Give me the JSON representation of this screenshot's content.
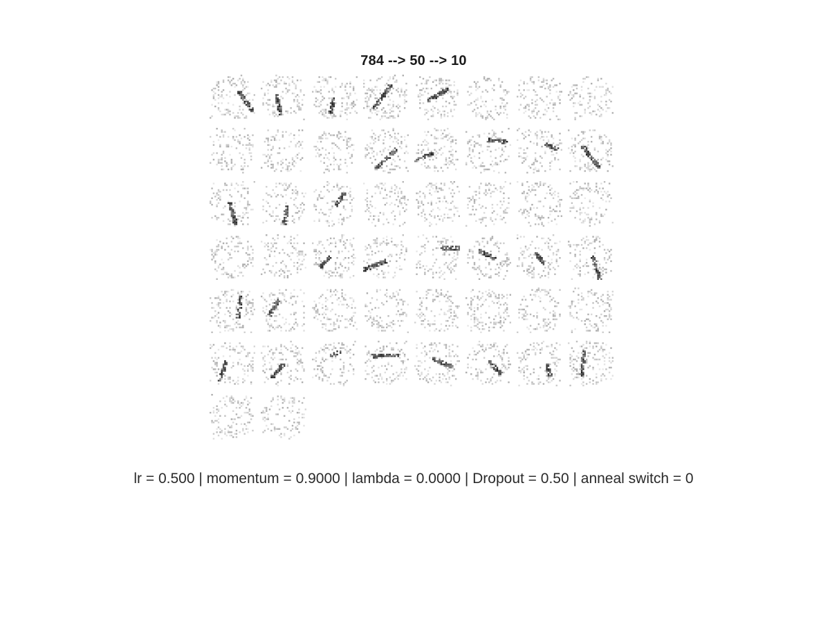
{
  "figure": {
    "title": "784 --> 50 --> 10",
    "caption": "lr = 0.500 | momentum = 0.9000 | lambda = 0.0000 | Dropout = 0.50 | anneal switch = 0"
  },
  "grid": {
    "tile_count": 50,
    "columns": 8,
    "rows": 7,
    "colormap": "gray (inverted: dark = strong weight)"
  }
}
